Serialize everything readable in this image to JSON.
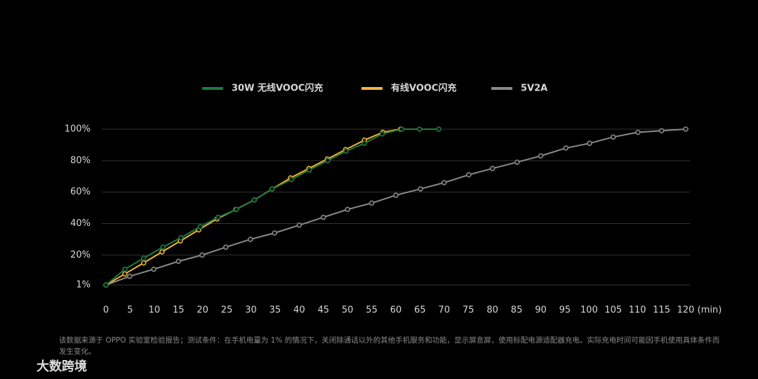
{
  "chart_data": {
    "type": "line",
    "x_label": "(min)",
    "xlim": [
      0,
      120
    ],
    "xticks": [
      0,
      5,
      10,
      15,
      20,
      25,
      30,
      35,
      40,
      45,
      50,
      55,
      60,
      65,
      70,
      75,
      80,
      85,
      90,
      95,
      100,
      105,
      110,
      115,
      120
    ],
    "ylim": [
      1,
      100
    ],
    "yticks": [
      {
        "value": 1,
        "label": "1%"
      },
      {
        "value": 20,
        "label": "20%"
      },
      {
        "value": 40,
        "label": "40%"
      },
      {
        "value": 60,
        "label": "60%"
      },
      {
        "value": 80,
        "label": "80%"
      },
      {
        "value": 100,
        "label": "100%"
      }
    ],
    "grid": true,
    "legend": "top",
    "series": [
      {
        "name": "30W 无线VOOC闪充",
        "color": "#1f7a3f",
        "x": [
          0,
          3.9,
          7.8,
          11.8,
          15.5,
          19.5,
          23.2,
          27,
          30.7,
          34.4,
          38.4,
          42.1,
          45.9,
          49.7,
          53.5,
          57.2,
          61.2,
          64.9,
          68.9
        ],
        "values": [
          1,
          11,
          18,
          25,
          31,
          38,
          44,
          49,
          55,
          62,
          68,
          74,
          80,
          86,
          91,
          97,
          100,
          100,
          100
        ]
      },
      {
        "name": "有线VOOC闪充",
        "color": "#f2b535",
        "x": [
          0,
          3.9,
          7.8,
          11.6,
          15.4,
          19.2,
          23,
          26.9,
          30.7,
          34.4,
          38.2,
          42,
          45.8,
          49.6,
          53.5,
          57.3,
          61
        ],
        "values": [
          1,
          8,
          15,
          22,
          29,
          36,
          43,
          49,
          55,
          62,
          69,
          75,
          81,
          87,
          93,
          98,
          100
        ]
      },
      {
        "name": "5V2A",
        "color": "#8a8a8a",
        "x": [
          0,
          4.9,
          9.9,
          15,
          19.9,
          24.8,
          29.9,
          34.9,
          40,
          45,
          50,
          55,
          60,
          65.1,
          70,
          75.1,
          80,
          85.1,
          90,
          95.2,
          100.1,
          105,
          110.1,
          115,
          120
        ],
        "values": [
          1,
          6.5,
          11,
          16,
          20,
          25,
          30,
          34,
          39,
          44,
          49,
          53,
          58,
          62,
          66,
          71,
          75,
          79,
          83,
          88,
          91,
          95,
          98,
          99,
          100
        ]
      }
    ],
    "footnote": "该数据来源于 OPPO 实验室检验报告；测试条件：在手机电量为 1% 的情况下，关闭除通话以外的其他手机服务和功能，显示屏息屏，使用标配电源适配器充电。实际充电时间可能因手机使用具体条件而发生变化。",
    "watermark": "大数跨境"
  }
}
